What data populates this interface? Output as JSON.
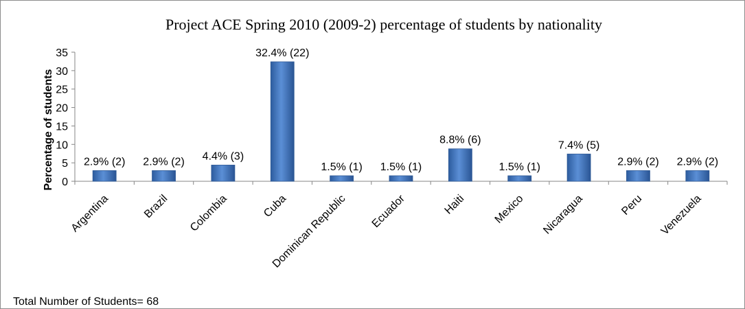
{
  "chart_data": {
    "type": "bar",
    "title": "Project ACE Spring 2010 (2009-2)  percentage of students by nationality",
    "ylabel": "Percentage of students",
    "xlabel": "",
    "ylim": [
      0,
      35
    ],
    "yticks": [
      "0",
      "5",
      "10",
      "15",
      "20",
      "25",
      "30",
      "35"
    ],
    "categories": [
      "Argentina",
      "Brazil",
      "Colombia",
      "Cuba",
      "Dominican Republic",
      "Ecuador",
      "Haiti",
      "Mexico",
      "Nicaragua",
      "Peru",
      "Venezuela"
    ],
    "values": [
      2.9,
      2.9,
      4.4,
      32.4,
      1.5,
      1.5,
      8.8,
      1.5,
      7.4,
      2.9,
      2.9
    ],
    "data_labels": [
      "2.9% (2)",
      "2.9% (2)",
      "4.4% (3)",
      "32.4% (22)",
      "1.5% (1)",
      "1.5% (1)",
      "8.8% (6)",
      "1.5% (1)",
      "7.4% (5)",
      "2.9% (2)",
      "2.9% (2)"
    ],
    "grid": false,
    "legend": "none",
    "bar_color": "#4a7ec2",
    "footnote": "Total Number of Students= 68"
  }
}
